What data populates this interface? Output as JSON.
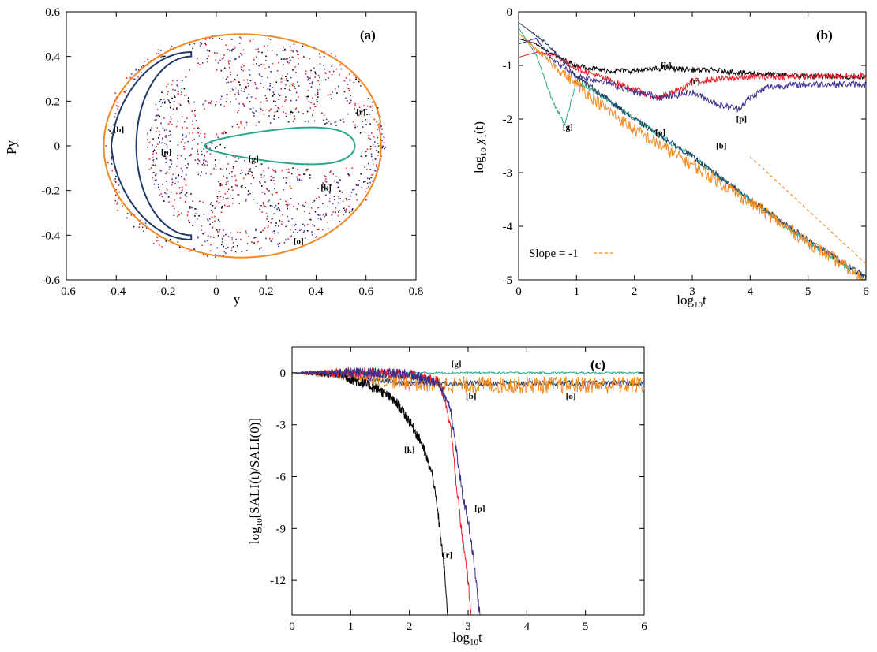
{
  "chart_data": [
    {
      "panel": "(a)",
      "type": "scatter",
      "xlabel": "y",
      "ylabel": "Py",
      "xlim": [
        -0.6,
        0.8
      ],
      "ylim": [
        -0.6,
        0.6
      ],
      "xticks": [
        -0.6,
        -0.4,
        -0.2,
        0,
        0.2,
        0.4,
        0.6,
        0.8
      ],
      "xtick_labels": [
        "-0.6",
        "-0.4",
        "-0.2",
        "0",
        "0.2",
        "0.4",
        "0.6",
        "0.8"
      ],
      "yticks": [
        -0.6,
        -0.4,
        -0.2,
        0,
        0.2,
        0.4,
        0.6
      ],
      "ytick_labels": [
        "-0.6",
        "-0.4",
        "-0.2",
        "0",
        "0.2",
        "0.4",
        "0.6"
      ],
      "grid": false,
      "series": [
        {
          "color": "#f08a24",
          "outer_boundary": [
            [
              -0.45,
              0.0
            ],
            [
              -0.4,
              0.28
            ],
            [
              -0.25,
              0.43
            ],
            [
              0.0,
              0.5
            ],
            [
              0.25,
              0.48
            ],
            [
              0.45,
              0.43
            ],
            [
              0.55,
              0.33
            ],
            [
              0.65,
              0.18
            ],
            [
              0.68,
              0.0
            ],
            [
              0.6,
              -0.25
            ],
            [
              0.4,
              -0.42
            ],
            [
              0.0,
              -0.5
            ],
            [
              -0.25,
              -0.45
            ],
            [
              -0.4,
              -0.3
            ],
            [
              -0.45,
              0.0
            ]
          ]
        },
        {
          "color": "#1f3a68",
          "crescent_tips": [
            [
              -0.1,
              0.42
            ],
            [
              -0.1,
              -0.42
            ]
          ],
          "leftmost_y": -0.42
        },
        {
          "color": "#2aa88a",
          "island": [
            [
              0.0,
              0.02
            ],
            [
              0.05,
              0.07
            ],
            [
              0.2,
              0.1
            ],
            [
              0.4,
              0.11
            ],
            [
              0.55,
              0.07
            ],
            [
              0.6,
              0.0
            ],
            [
              0.55,
              -0.09
            ],
            [
              0.45,
              -0.11
            ],
            [
              0.25,
              -0.09
            ],
            [
              0.1,
              -0.06
            ],
            [
              0.0,
              0.02
            ]
          ]
        },
        {
          "color": "#e8202a",
          "type": "scatter-chaotic"
        },
        {
          "color": "#3a2f8f",
          "type": "scatter-chaotic"
        },
        {
          "color": "#000000",
          "type": "scatter-chaotic"
        }
      ],
      "annotations": [
        {
          "text": "[b]",
          "x": -0.39,
          "y": 0.06
        },
        {
          "text": "[p]",
          "x": -0.2,
          "y": -0.04
        },
        {
          "text": "[g]",
          "x": 0.15,
          "y": -0.07
        },
        {
          "text": "[r]",
          "x": 0.58,
          "y": 0.14
        },
        {
          "text": "[k]",
          "x": 0.44,
          "y": -0.2
        },
        {
          "text": "[o]",
          "x": 0.33,
          "y": -0.44
        }
      ]
    },
    {
      "panel": "(b)",
      "type": "line",
      "xlabel": "log10t",
      "ylabel": "log10 χ1(t)",
      "xlim": [
        0,
        6
      ],
      "ylim": [
        -5,
        0
      ],
      "xticks": [
        0,
        1,
        2,
        3,
        4,
        5,
        6
      ],
      "xtick_labels": [
        "0",
        "1",
        "2",
        "3",
        "4",
        "5",
        "6"
      ],
      "yticks": [
        0,
        -1,
        -2,
        -3,
        -4,
        -5
      ],
      "ytick_labels": [
        "0",
        "-1",
        "-2",
        "-3",
        "-4",
        "-5"
      ],
      "grid": false,
      "legend": {
        "label": "Slope = -1",
        "position": "bottom-left"
      },
      "reference_line": {
        "x": [
          4.0,
          6.0
        ],
        "y": [
          -2.7,
          -4.7
        ],
        "color": "#f08a24",
        "dash": true
      },
      "series": [
        {
          "label": "[k]",
          "color": "#000000",
          "x": [
            0,
            0.3,
            0.6,
            1.0,
            1.5,
            2.0,
            2.5,
            3.0,
            3.5,
            4.0,
            5.0,
            6.0
          ],
          "y": [
            -0.5,
            -0.6,
            -0.8,
            -1.0,
            -1.1,
            -1.1,
            -1.05,
            -1.08,
            -1.1,
            -1.15,
            -1.2,
            -1.22
          ],
          "noise": 0.05
        },
        {
          "label": "[r]",
          "color": "#e8202a",
          "x": [
            0,
            0.3,
            0.6,
            1.0,
            1.5,
            2.0,
            2.4,
            2.8,
            3.0,
            3.5,
            4.0,
            5.0,
            6.0
          ],
          "y": [
            -0.85,
            -0.75,
            -0.8,
            -1.05,
            -1.25,
            -1.45,
            -1.6,
            -1.45,
            -1.3,
            -1.25,
            -1.22,
            -1.2,
            -1.2
          ],
          "noise": 0.06
        },
        {
          "label": "[p]",
          "color": "#3a2f8f",
          "x": [
            0,
            0.3,
            0.6,
            1.0,
            1.5,
            2.0,
            2.5,
            3.0,
            3.5,
            3.8,
            4.0,
            4.3,
            5.0,
            6.0
          ],
          "y": [
            -0.6,
            -0.5,
            -0.9,
            -1.2,
            -1.3,
            -1.5,
            -1.6,
            -1.5,
            -1.75,
            -1.8,
            -1.6,
            -1.4,
            -1.35,
            -1.35
          ],
          "noise": 0.06
        },
        {
          "label": "[g]",
          "color": "#2aa88a",
          "x": [
            0,
            0.3,
            0.6,
            0.8,
            1.0,
            1.5,
            2.0,
            3.0,
            4.0,
            5.0,
            6.0
          ],
          "y": [
            -0.3,
            -0.8,
            -1.7,
            -2.1,
            -1.3,
            -1.6,
            -2.0,
            -2.7,
            -3.5,
            -4.3,
            -5.0
          ],
          "noise": 0.05
        },
        {
          "label": "[b]",
          "color": "#1f3a68",
          "x": [
            0,
            0.5,
            1.0,
            1.5,
            2.0,
            3.0,
            4.0,
            5.0,
            6.0
          ],
          "y": [
            -0.2,
            -0.6,
            -1.2,
            -1.6,
            -2.0,
            -2.7,
            -3.5,
            -4.25,
            -4.95
          ],
          "noise": 0.05
        },
        {
          "label": "[o]",
          "color": "#f08a24",
          "x": [
            0,
            0.5,
            1.0,
            1.5,
            2.0,
            3.0,
            4.0,
            5.0,
            6.0
          ],
          "y": [
            -0.4,
            -0.9,
            -1.35,
            -1.8,
            -2.2,
            -2.85,
            -3.55,
            -4.3,
            -5.0
          ],
          "noise": 0.12
        }
      ],
      "annotations": [
        {
          "text": "[k]",
          "x": 2.55,
          "y": -1.05
        },
        {
          "text": "[r]",
          "x": 3.05,
          "y": -1.35
        },
        {
          "text": "[g]",
          "x": 0.85,
          "y": -2.2
        },
        {
          "text": "[o]",
          "x": 2.45,
          "y": -2.3
        },
        {
          "text": "[b]",
          "x": 3.5,
          "y": -2.55
        },
        {
          "text": "[p]",
          "x": 3.85,
          "y": -2.05
        }
      ]
    },
    {
      "panel": "(c)",
      "type": "line",
      "xlabel": "log10t",
      "ylabel": "log10[SALI(t)/SALI(0)]",
      "xlim": [
        0,
        6
      ],
      "ylim": [
        -14,
        1.5
      ],
      "xticks": [
        0,
        1,
        2,
        3,
        4,
        5,
        6
      ],
      "xtick_labels": [
        "0",
        "1",
        "2",
        "3",
        "4",
        "5",
        "6"
      ],
      "yticks": [
        0,
        -3,
        -6,
        -9,
        -12
      ],
      "ytick_labels": [
        "0",
        "-3",
        "-6",
        "-9",
        "-12"
      ],
      "grid": false,
      "series": [
        {
          "label": "[g]",
          "color": "#2aa88a",
          "x": [
            0,
            1,
            2,
            3,
            4,
            5,
            6
          ],
          "y": [
            0,
            0,
            0,
            0,
            0,
            0,
            0
          ],
          "noise": 0.06
        },
        {
          "label": "[b]",
          "color": "#1f3a68",
          "x": [
            0,
            0.8,
            1.2,
            2.0,
            3.0,
            4.0,
            5.0,
            6.0
          ],
          "y": [
            0,
            -0.1,
            -0.3,
            -0.6,
            -0.6,
            -0.6,
            -0.6,
            -0.6
          ],
          "noise": 0.15
        },
        {
          "label": "[o]",
          "color": "#f08a24",
          "x": [
            0,
            1.0,
            1.5,
            2.0,
            3.0,
            4.0,
            5.0,
            6.0
          ],
          "y": [
            0,
            -0.1,
            -0.3,
            -0.6,
            -0.7,
            -0.7,
            -0.7,
            -0.7
          ],
          "noise": 0.5
        },
        {
          "label": "[k]",
          "color": "#000000",
          "x": [
            0,
            0.8,
            1.2,
            1.5,
            1.8,
            2.0,
            2.2,
            2.4,
            2.5,
            2.6,
            2.65
          ],
          "y": [
            0,
            -0.1,
            -0.6,
            -1.0,
            -1.8,
            -2.8,
            -4.0,
            -6.0,
            -8.5,
            -11.5,
            -14.0
          ],
          "noise": 0.3
        },
        {
          "label": "[r]",
          "color": "#e8202a",
          "x": [
            0,
            1.5,
            2.0,
            2.5,
            2.6,
            2.7,
            2.8,
            2.9,
            3.0,
            3.05
          ],
          "y": [
            0,
            0,
            -0.1,
            -0.5,
            -1.5,
            -3.0,
            -6.5,
            -9.5,
            -12.0,
            -14.0
          ],
          "noise": 0.3
        },
        {
          "label": "[p]",
          "color": "#3a2f8f",
          "x": [
            0,
            1.5,
            2.0,
            2.5,
            2.7,
            2.8,
            2.9,
            3.0,
            3.1,
            3.2
          ],
          "y": [
            0,
            0,
            -0.1,
            -0.6,
            -2.0,
            -4.5,
            -7.0,
            -8.5,
            -11.0,
            -14.0
          ],
          "noise": 0.3
        }
      ],
      "annotations": [
        {
          "text": "[g]",
          "x": 2.8,
          "y": 0.35
        },
        {
          "text": "[b]",
          "x": 3.05,
          "y": -1.5
        },
        {
          "text": "[o]",
          "x": 4.75,
          "y": -1.5
        },
        {
          "text": "[k]",
          "x": 2.0,
          "y": -4.6
        },
        {
          "text": "[r]",
          "x": 2.65,
          "y": -10.7
        },
        {
          "text": "[p]",
          "x": 3.2,
          "y": -8.0
        }
      ]
    }
  ]
}
